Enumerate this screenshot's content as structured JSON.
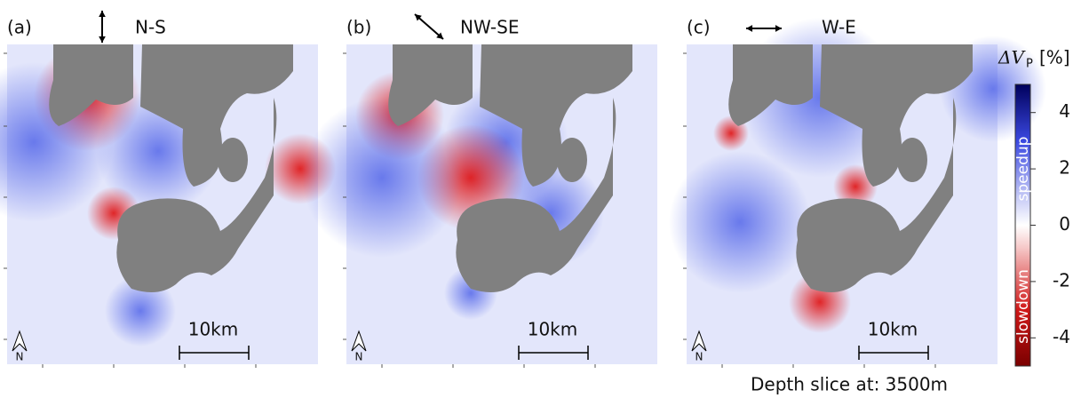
{
  "panels": [
    {
      "label": "(a)",
      "direction": "N-S",
      "scale_bar": "10km",
      "north": "N"
    },
    {
      "label": "(b)",
      "direction": "NW-SE",
      "scale_bar": "10km",
      "north": "N"
    },
    {
      "label": "(c)",
      "direction": "W-E",
      "scale_bar": "10km",
      "north": "N"
    }
  ],
  "colorbar": {
    "title_main": "ΔV",
    "title_sub": "P",
    "title_unit": "[%]",
    "lim": [
      -5,
      5
    ],
    "ticks": [
      -4,
      -2,
      0,
      2,
      4
    ],
    "high_label": "speedup",
    "low_label": "slowdown"
  },
  "caption": "Depth slice at: 3500m"
}
